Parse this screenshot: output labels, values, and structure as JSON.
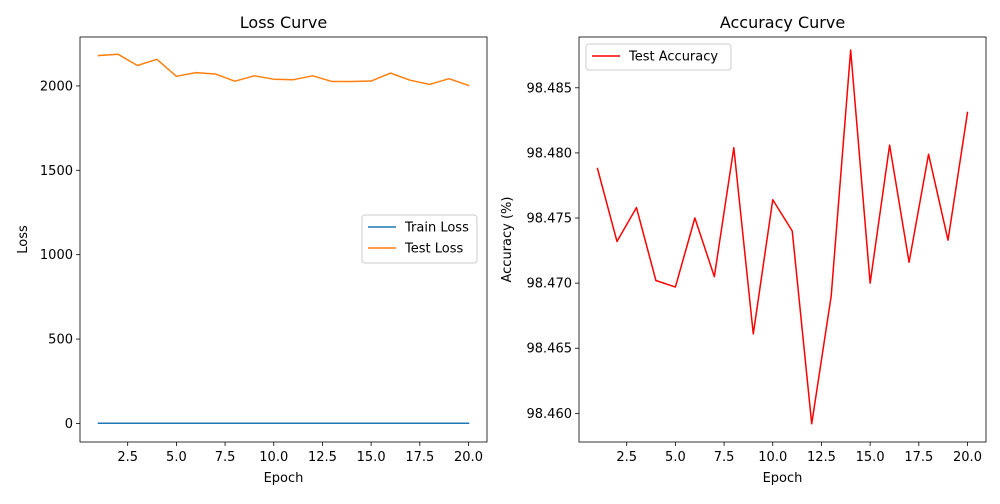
{
  "colors": {
    "train_loss": "#1f77b4",
    "test_loss": "#ff7f0e",
    "test_accuracy": "#ff0000"
  },
  "chart_data": [
    {
      "type": "line",
      "title": "Loss Curve",
      "xlabel": "Epoch",
      "ylabel": "Loss",
      "x": [
        1,
        2,
        3,
        4,
        5,
        6,
        7,
        8,
        9,
        10,
        11,
        12,
        13,
        14,
        15,
        16,
        17,
        18,
        19,
        20
      ],
      "xlim": [
        0.05,
        20.95
      ],
      "ylim": [
        -110,
        2290
      ],
      "xticks": [
        2.5,
        5.0,
        7.5,
        10.0,
        12.5,
        15.0,
        17.5,
        20.0
      ],
      "xtick_labels": [
        "2.5",
        "5.0",
        "7.5",
        "10.0",
        "12.5",
        "15.0",
        "17.5",
        "20.0"
      ],
      "yticks": [
        0,
        500,
        1000,
        1500,
        2000
      ],
      "ytick_labels": [
        "0",
        "500",
        "1000",
        "1500",
        "2000"
      ],
      "grid": false,
      "legend_position": "center-right",
      "series": [
        {
          "name": "Train Loss",
          "color": "#1f77b4",
          "values": [
            1,
            1,
            1,
            1,
            1,
            1,
            1,
            1,
            1,
            1,
            1,
            1,
            1,
            1,
            1,
            1,
            1,
            1,
            1,
            1
          ]
        },
        {
          "name": "Test Loss",
          "color": "#ff7f0e",
          "values": [
            2180,
            2188,
            2121,
            2158,
            2057,
            2079,
            2071,
            2028,
            2060,
            2040,
            2037,
            2060,
            2026,
            2026,
            2029,
            2076,
            2034,
            2009,
            2043,
            2003
          ]
        }
      ]
    },
    {
      "type": "line",
      "title": "Accuracy Curve",
      "xlabel": "Epoch",
      "ylabel": "Accuracy (%)",
      "x": [
        1,
        2,
        3,
        4,
        5,
        6,
        7,
        8,
        9,
        10,
        11,
        12,
        13,
        14,
        15,
        16,
        17,
        18,
        19,
        20
      ],
      "xlim": [
        0.05,
        20.95
      ],
      "ylim": [
        98.4578,
        98.4889
      ],
      "xticks": [
        2.5,
        5.0,
        7.5,
        10.0,
        12.5,
        15.0,
        17.5,
        20.0
      ],
      "xtick_labels": [
        "2.5",
        "5.0",
        "7.5",
        "10.0",
        "12.5",
        "15.0",
        "17.5",
        "20.0"
      ],
      "yticks": [
        98.46,
        98.465,
        98.47,
        98.475,
        98.48,
        98.485
      ],
      "ytick_labels": [
        "98.460",
        "98.465",
        "98.470",
        "98.475",
        "98.480",
        "98.485"
      ],
      "grid": false,
      "legend_position": "upper-left",
      "series": [
        {
          "name": "Test Accuracy",
          "color": "#ff0000",
          "values": [
            98.4788,
            98.4732,
            98.4758,
            98.4702,
            98.4697,
            98.475,
            98.4705,
            98.4804,
            98.4661,
            98.4764,
            98.474,
            98.4592,
            98.469,
            98.4879,
            98.47,
            98.4806,
            98.4716,
            98.4799,
            98.4733,
            98.4831
          ]
        }
      ]
    }
  ]
}
